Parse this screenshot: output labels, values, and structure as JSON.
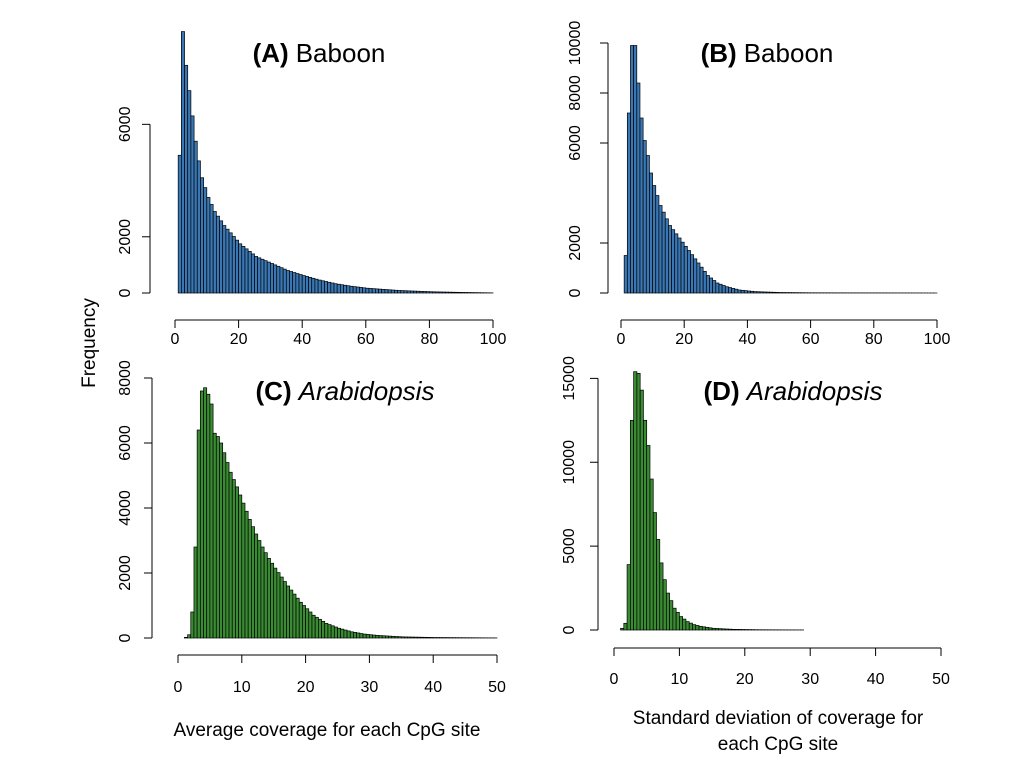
{
  "figure": {
    "ylabel": "Frequency",
    "xlabel_left": "Average coverage for each CpG site",
    "xlabel_right_line1": "Standard deviation of coverage for",
    "xlabel_right_line2": "each CpG site"
  },
  "chart_data": [
    {
      "type": "bar",
      "panel": "A",
      "title_label": "(A)",
      "title_species": "Baboon",
      "title_italic": false,
      "color": "#3a78b5",
      "bin_width": 1,
      "xlim": [
        0,
        100
      ],
      "xticks": [
        0,
        20,
        40,
        60,
        80,
        100
      ],
      "ylim": [
        0,
        9000
      ],
      "yticks": [
        0,
        2000,
        6000
      ],
      "anchors": [
        [
          1,
          0
        ],
        [
          1.5,
          4900
        ],
        [
          2.5,
          9300
        ],
        [
          3.5,
          8100
        ],
        [
          4.5,
          7200
        ],
        [
          5.5,
          6300
        ],
        [
          6.5,
          5400
        ],
        [
          7.5,
          4700
        ],
        [
          8.5,
          4100
        ],
        [
          9.5,
          3750
        ],
        [
          10.5,
          3400
        ],
        [
          12.5,
          2900
        ],
        [
          15.5,
          2400
        ],
        [
          20.5,
          1750
        ],
        [
          25.5,
          1300
        ],
        [
          30.5,
          1050
        ],
        [
          35.5,
          800
        ],
        [
          40.5,
          620
        ],
        [
          45.5,
          460
        ],
        [
          50.5,
          330
        ],
        [
          55.5,
          240
        ],
        [
          60.5,
          170
        ],
        [
          70.5,
          90
        ],
        [
          80.5,
          45
        ],
        [
          90.5,
          20
        ],
        [
          99.5,
          5
        ]
      ],
      "bars_from": 1,
      "bars_to": 100
    },
    {
      "type": "bar",
      "panel": "B",
      "title_label": "(B)",
      "title_species": "Baboon",
      "title_italic": false,
      "color": "#3a78b5",
      "bin_width": 1,
      "xlim": [
        0,
        100
      ],
      "xticks": [
        0,
        20,
        40,
        60,
        80,
        100
      ],
      "ylim": [
        0,
        10200
      ],
      "yticks": [
        0,
        2000,
        6000,
        8000,
        10000
      ],
      "anchors": [
        [
          1,
          0
        ],
        [
          1.5,
          1500
        ],
        [
          2.5,
          7200
        ],
        [
          3.5,
          9900
        ],
        [
          4.5,
          9900
        ],
        [
          5.5,
          8400
        ],
        [
          6.5,
          7000
        ],
        [
          7.5,
          6100
        ],
        [
          8.5,
          5500
        ],
        [
          9.5,
          4800
        ],
        [
          10.5,
          4300
        ],
        [
          12.5,
          3500
        ],
        [
          15.5,
          2700
        ],
        [
          18.5,
          2200
        ],
        [
          21.5,
          1700
        ],
        [
          24.5,
          1200
        ],
        [
          27.5,
          700
        ],
        [
          30.5,
          400
        ],
        [
          33.5,
          250
        ],
        [
          37.5,
          120
        ],
        [
          42.5,
          55
        ],
        [
          50.5,
          20
        ],
        [
          60.5,
          8
        ],
        [
          99.5,
          1
        ]
      ],
      "bars_from": 1,
      "bars_to": 100
    },
    {
      "type": "bar",
      "panel": "C",
      "title_label": "(C)",
      "title_species": "Arabidopsis",
      "title_italic": true,
      "color": "#3a8c33",
      "bin_width": 0.5,
      "xlim": [
        0,
        50
      ],
      "xticks": [
        0,
        10,
        20,
        30,
        40,
        50
      ],
      "ylim": [
        0,
        8000
      ],
      "yticks": [
        0,
        2000,
        4000,
        6000,
        8000
      ],
      "anchors": [
        [
          1.25,
          20
        ],
        [
          1.75,
          100
        ],
        [
          2.25,
          800
        ],
        [
          2.75,
          2800
        ],
        [
          3.25,
          6400
        ],
        [
          3.75,
          7600
        ],
        [
          4.25,
          7700
        ],
        [
          4.75,
          7500
        ],
        [
          5.25,
          7200
        ],
        [
          5.75,
          6300
        ],
        [
          6.25,
          6200
        ],
        [
          6.75,
          6000
        ],
        [
          7.25,
          5700
        ],
        [
          7.75,
          5400
        ],
        [
          8.25,
          5100
        ],
        [
          9.25,
          4650
        ],
        [
          10.25,
          4150
        ],
        [
          11.25,
          3650
        ],
        [
          12.25,
          3200
        ],
        [
          13.25,
          2800
        ],
        [
          14.25,
          2450
        ],
        [
          15.25,
          2150
        ],
        [
          17.25,
          1600
        ],
        [
          19.25,
          1100
        ],
        [
          21.25,
          700
        ],
        [
          23.25,
          450
        ],
        [
          25.25,
          300
        ],
        [
          27.25,
          190
        ],
        [
          29.25,
          120
        ],
        [
          31.25,
          80
        ],
        [
          35.25,
          35
        ],
        [
          40.25,
          15
        ],
        [
          49.75,
          3
        ]
      ],
      "bars_from": 1,
      "bars_to": 50
    },
    {
      "type": "bar",
      "panel": "D",
      "title_label": "(D)",
      "title_species": "Arabidopsis",
      "title_italic": true,
      "color": "#3a8c33",
      "bin_width": 0.5,
      "xlim": [
        0,
        50
      ],
      "xticks": [
        0,
        10,
        20,
        30,
        40,
        50
      ],
      "ylim": [
        0,
        15500
      ],
      "yticks": [
        0,
        5000,
        10000,
        15000
      ],
      "anchors": [
        [
          1,
          0
        ],
        [
          1.25,
          100
        ],
        [
          1.75,
          400
        ],
        [
          2.25,
          3900
        ],
        [
          2.75,
          12500
        ],
        [
          3.25,
          15400
        ],
        [
          3.75,
          15300
        ],
        [
          4.25,
          14300
        ],
        [
          4.75,
          12500
        ],
        [
          5.25,
          11000
        ],
        [
          5.75,
          9000
        ],
        [
          6.25,
          7000
        ],
        [
          6.75,
          5400
        ],
        [
          7.25,
          4000
        ],
        [
          7.75,
          3000
        ],
        [
          8.25,
          2200
        ],
        [
          9.25,
          1300
        ],
        [
          10.25,
          800
        ],
        [
          11.25,
          500
        ],
        [
          12.25,
          320
        ],
        [
          13.25,
          220
        ],
        [
          15.25,
          100
        ],
        [
          18.25,
          40
        ],
        [
          22.25,
          15
        ],
        [
          28.75,
          4
        ]
      ],
      "bars_from": 1,
      "bars_to": 29
    }
  ]
}
